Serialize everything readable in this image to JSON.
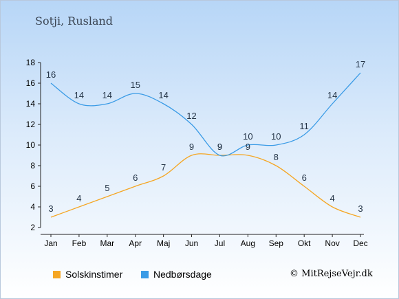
{
  "header": {
    "title": "Sotji, Rusland"
  },
  "chart_data": {
    "type": "line",
    "categories": [
      "Jan",
      "Feb",
      "Mar",
      "Apr",
      "Maj",
      "Jun",
      "Jul",
      "Aug",
      "Sep",
      "Okt",
      "Nov",
      "Dec"
    ],
    "series": [
      {
        "name": "Solskinstimer",
        "color": "#f5a623",
        "values": [
          3,
          4,
          5,
          6,
          7,
          9,
          9,
          9,
          8,
          6,
          4,
          3
        ]
      },
      {
        "name": "Nedbørsdage",
        "color": "#3a9be6",
        "values": [
          16,
          14,
          14,
          15,
          14,
          12,
          9,
          10,
          10,
          11,
          14,
          17
        ]
      }
    ],
    "y_ticks": [
      2,
      4,
      6,
      8,
      10,
      12,
      14,
      16,
      18
    ],
    "ylim": [
      2,
      18
    ],
    "title": "",
    "xlabel": "",
    "ylabel": "",
    "grid": false,
    "legend_position": "bottom-left"
  },
  "legend": {
    "sun_label": "Solskinstimer",
    "rain_label": "Nedbørsdage"
  },
  "footer": {
    "copyright": "© MitRejseVejr.dk"
  }
}
